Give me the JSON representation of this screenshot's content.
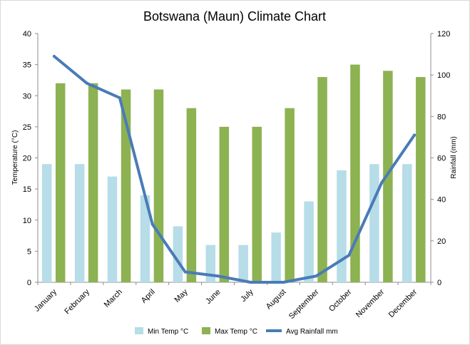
{
  "chart_data": {
    "type": "bar",
    "title": "Botswana (Maun) Climate Chart",
    "categories": [
      "January",
      "February",
      "March",
      "April",
      "May",
      "June",
      "July",
      "August",
      "September",
      "October",
      "November",
      "December"
    ],
    "ylabel_left": "Temperature  (°C)",
    "ylabel_right": "Rainfall (mm)",
    "ylim_left": [
      0,
      40
    ],
    "ylim_right": [
      0,
      120
    ],
    "yticks_left": [
      "0",
      "5",
      "10",
      "15",
      "20",
      "25",
      "30",
      "35",
      "40"
    ],
    "yticks_right": [
      "0",
      "20",
      "40",
      "60",
      "80",
      "100",
      "120"
    ],
    "grid": false,
    "legend_position": "bottom",
    "series": [
      {
        "name": "Min Temp °C",
        "type": "bar",
        "axis": "left",
        "color": "#b6dde8",
        "values": [
          19,
          19,
          17,
          14,
          9,
          6,
          6,
          8,
          13,
          18,
          19,
          19
        ]
      },
      {
        "name": "Max Temp °C",
        "type": "bar",
        "axis": "left",
        "color": "#8db252",
        "values": [
          32,
          32,
          31,
          31,
          28,
          25,
          25,
          28,
          33,
          35,
          34,
          33
        ]
      },
      {
        "name": "Avg Rainfall mm",
        "type": "line",
        "axis": "right",
        "color": "#4a7bb7",
        "values": [
          109,
          96,
          89,
          28,
          5,
          3,
          0,
          0,
          3,
          13,
          48,
          71
        ]
      }
    ]
  }
}
